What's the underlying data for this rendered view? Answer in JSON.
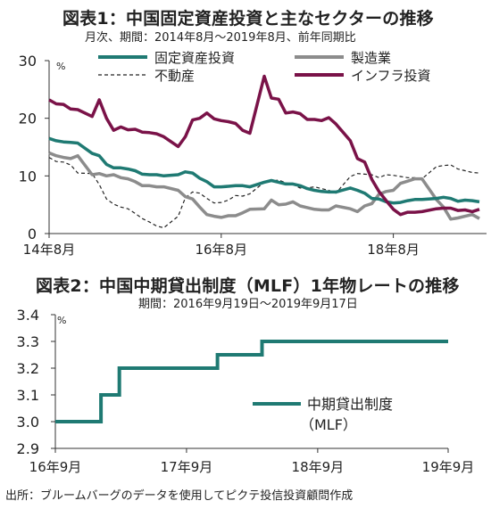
{
  "colors": {
    "fixed_investment": "#1f7a73",
    "manufacturing": "#8c8c8c",
    "real_estate": "#222222",
    "infrastructure": "#7a1248",
    "mlf": "#1f7a73",
    "axis": "#333333"
  },
  "chart_data": [
    {
      "type": "line",
      "title": "図表1：中国固定資産投資と主なセクターの推移",
      "subtitle": "月次、期間：2014年8月～2019年8月、前年同期比",
      "unit_label": "%",
      "ylim": [
        0,
        30
      ],
      "yticks": [
        "0",
        "10",
        "20",
        "30"
      ],
      "xlim": [
        "2014-08",
        "2019-08"
      ],
      "xtick_labels": [
        {
          "x": "2014-08",
          "label": "14年8月"
        },
        {
          "x": "2016-08",
          "label": "16年8月"
        },
        {
          "x": "2018-08",
          "label": "18年8月"
        }
      ],
      "legend": [
        "固定資産投資",
        "製造業",
        "不動産",
        "インフラ投資"
      ],
      "series": [
        {
          "name": "固定資産投資",
          "key": "fixed_investment",
          "x": [
            "2014-08",
            "2014-09",
            "2014-10",
            "2014-11",
            "2014-12",
            "2015-02",
            "2015-03",
            "2015-04",
            "2015-05",
            "2015-06",
            "2015-07",
            "2015-08",
            "2015-09",
            "2015-10",
            "2015-11",
            "2015-12",
            "2016-02",
            "2016-03",
            "2016-04",
            "2016-05",
            "2016-06",
            "2016-07",
            "2016-08",
            "2016-09",
            "2016-10",
            "2016-11",
            "2016-12",
            "2017-02",
            "2017-03",
            "2017-04",
            "2017-05",
            "2017-06",
            "2017-07",
            "2017-08",
            "2017-09",
            "2017-10",
            "2017-11",
            "2017-12",
            "2018-02",
            "2018-03",
            "2018-04",
            "2018-05",
            "2018-06",
            "2018-07",
            "2018-08",
            "2018-09",
            "2018-10",
            "2018-11",
            "2018-12",
            "2019-02",
            "2019-03",
            "2019-04",
            "2019-05",
            "2019-06",
            "2019-07",
            "2019-08"
          ],
          "values": [
            16.5,
            16.1,
            15.9,
            15.8,
            15.7,
            13.9,
            13.5,
            12.0,
            11.4,
            11.4,
            11.2,
            10.9,
            10.3,
            10.2,
            10.2,
            10.0,
            10.2,
            10.7,
            10.5,
            9.6,
            9.0,
            8.1,
            8.1,
            8.2,
            8.3,
            8.3,
            8.1,
            8.9,
            9.2,
            8.9,
            8.6,
            8.6,
            8.3,
            7.8,
            7.5,
            7.3,
            7.2,
            7.2,
            7.9,
            7.5,
            7.0,
            6.1,
            6.0,
            5.5,
            5.3,
            5.4,
            5.7,
            5.9,
            5.9,
            6.1,
            6.3,
            6.1,
            5.6,
            5.8,
            5.7,
            5.5
          ]
        },
        {
          "name": "製造業",
          "key": "manufacturing",
          "x": [
            "2014-08",
            "2014-09",
            "2014-10",
            "2014-11",
            "2014-12",
            "2015-02",
            "2015-03",
            "2015-04",
            "2015-05",
            "2015-06",
            "2015-07",
            "2015-08",
            "2015-09",
            "2015-10",
            "2015-11",
            "2015-12",
            "2016-02",
            "2016-03",
            "2016-04",
            "2016-05",
            "2016-06",
            "2016-07",
            "2016-08",
            "2016-09",
            "2016-10",
            "2016-11",
            "2016-12",
            "2017-02",
            "2017-03",
            "2017-04",
            "2017-05",
            "2017-06",
            "2017-07",
            "2017-08",
            "2017-09",
            "2017-10",
            "2017-11",
            "2017-12",
            "2018-02",
            "2018-03",
            "2018-04",
            "2018-05",
            "2018-06",
            "2018-07",
            "2018-08",
            "2018-09",
            "2018-10",
            "2018-11",
            "2018-12",
            "2019-02",
            "2019-03",
            "2019-04",
            "2019-05",
            "2019-06",
            "2019-07",
            "2019-08"
          ],
          "values": [
            14.0,
            13.5,
            13.2,
            13.0,
            13.5,
            10.2,
            10.4,
            10.0,
            10.2,
            9.7,
            9.5,
            9.0,
            8.3,
            8.3,
            8.1,
            8.1,
            7.5,
            6.4,
            6.0,
            4.6,
            3.3,
            3.0,
            2.8,
            3.1,
            3.1,
            3.6,
            4.2,
            4.3,
            5.8,
            5.0,
            5.1,
            5.5,
            4.8,
            4.5,
            4.2,
            4.1,
            4.1,
            4.8,
            4.3,
            3.8,
            4.8,
            5.2,
            6.8,
            7.3,
            7.5,
            8.7,
            9.1,
            9.5,
            9.5,
            5.9,
            4.6,
            2.5,
            2.7,
            3.0,
            3.3,
            2.6
          ]
        },
        {
          "name": "不動産",
          "key": "real_estate",
          "x": [
            "2014-08",
            "2014-09",
            "2014-10",
            "2014-11",
            "2014-12",
            "2015-02",
            "2015-03",
            "2015-04",
            "2015-05",
            "2015-06",
            "2015-07",
            "2015-08",
            "2015-09",
            "2015-10",
            "2015-11",
            "2015-12",
            "2016-02",
            "2016-03",
            "2016-04",
            "2016-05",
            "2016-06",
            "2016-07",
            "2016-08",
            "2016-09",
            "2016-10",
            "2016-11",
            "2016-12",
            "2017-02",
            "2017-03",
            "2017-04",
            "2017-05",
            "2017-06",
            "2017-07",
            "2017-08",
            "2017-09",
            "2017-10",
            "2017-11",
            "2017-12",
            "2018-02",
            "2018-03",
            "2018-04",
            "2018-05",
            "2018-06",
            "2018-07",
            "2018-08",
            "2018-09",
            "2018-10",
            "2018-11",
            "2018-12",
            "2019-02",
            "2019-03",
            "2019-04",
            "2019-05",
            "2019-06",
            "2019-07",
            "2019-08"
          ],
          "values": [
            13.2,
            12.5,
            12.4,
            11.9,
            10.5,
            10.4,
            8.5,
            6.0,
            5.1,
            4.6,
            4.3,
            3.5,
            2.6,
            2.0,
            1.3,
            1.0,
            3.0,
            6.2,
            7.2,
            7.0,
            6.1,
            5.3,
            5.4,
            5.8,
            6.6,
            6.5,
            6.9,
            8.9,
            9.1,
            9.3,
            8.8,
            8.5,
            7.9,
            7.9,
            8.1,
            7.8,
            7.5,
            7.0,
            9.9,
            10.4,
            10.3,
            10.2,
            9.7,
            10.2,
            10.1,
            9.9,
            9.7,
            9.7,
            9.5,
            11.6,
            11.8,
            11.9,
            11.2,
            10.9,
            10.6,
            10.5
          ]
        },
        {
          "name": "インフラ投資",
          "key": "infrastructure",
          "x": [
            "2014-08",
            "2014-09",
            "2014-10",
            "2014-11",
            "2014-12",
            "2015-02",
            "2015-03",
            "2015-04",
            "2015-05",
            "2015-06",
            "2015-07",
            "2015-08",
            "2015-09",
            "2015-10",
            "2015-11",
            "2015-12",
            "2016-02",
            "2016-03",
            "2016-04",
            "2016-05",
            "2016-06",
            "2016-07",
            "2016-08",
            "2016-09",
            "2016-10",
            "2016-11",
            "2016-12",
            "2017-02",
            "2017-03",
            "2017-04",
            "2017-05",
            "2017-06",
            "2017-07",
            "2017-08",
            "2017-09",
            "2017-10",
            "2017-11",
            "2017-12",
            "2018-02",
            "2018-03",
            "2018-04",
            "2018-05",
            "2018-06",
            "2018-07",
            "2018-08",
            "2018-09",
            "2018-10",
            "2018-11",
            "2018-12",
            "2019-02",
            "2019-03",
            "2019-04",
            "2019-05",
            "2019-06",
            "2019-07",
            "2019-08"
          ],
          "values": [
            23.2,
            22.5,
            22.4,
            21.6,
            21.5,
            20.3,
            23.2,
            20.0,
            17.9,
            18.5,
            18.0,
            18.1,
            17.6,
            17.5,
            17.3,
            16.8,
            15.1,
            16.8,
            19.7,
            20.0,
            20.9,
            19.9,
            19.6,
            19.4,
            19.1,
            17.9,
            17.4,
            27.3,
            23.5,
            23.3,
            20.9,
            21.1,
            20.8,
            19.8,
            19.8,
            19.6,
            20.1,
            19.0,
            16.1,
            13.0,
            12.4,
            9.4,
            7.3,
            5.7,
            4.2,
            3.3,
            3.7,
            3.7,
            3.8,
            4.3,
            4.4,
            4.4,
            4.0,
            4.1,
            3.8,
            4.2
          ]
        }
      ]
    },
    {
      "type": "line",
      "title": "図表2：中国中期貸出制度（MLF）1年物レートの推移",
      "subtitle": "期間：2016年9月19日～2019年9月17日",
      "unit_label": "%",
      "ylim": [
        2.9,
        3.4
      ],
      "yticks": [
        "2.9",
        "3.0",
        "3.1",
        "3.2",
        "3.3",
        "3.4"
      ],
      "xlim": [
        "2016-09-19",
        "2019-09-17"
      ],
      "xtick_labels": [
        {
          "x": "2016-09-19",
          "label": "16年9月"
        },
        {
          "x": "2017-09-19",
          "label": "17年9月"
        },
        {
          "x": "2018-09-19",
          "label": "18年9月"
        },
        {
          "x": "2019-09-17",
          "label": "19年9月"
        }
      ],
      "legend": [
        "中期貸出制度",
        "（MLF）"
      ],
      "series": [
        {
          "name": "中期貸出制度（MLF）",
          "key": "mlf",
          "step": true,
          "x": [
            "2016-09-19",
            "2017-01-24",
            "2017-03-16",
            "2017-12-14",
            "2018-04-17",
            "2019-09-17"
          ],
          "values": [
            3.0,
            3.1,
            3.2,
            3.25,
            3.3,
            3.3
          ]
        }
      ]
    }
  ],
  "footer": {
    "source": "出所：ブルームバーグのデータを使用してピクテ投信投資顧問作成"
  }
}
